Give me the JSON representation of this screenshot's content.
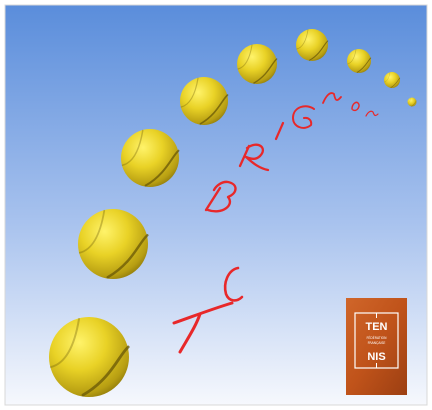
{
  "colors": {
    "sky_top": "#5b8edc",
    "sky_bottom": "#f4f7fd",
    "ball": "#e7cf24",
    "ball_shadow": "#9a8410",
    "seam": "#6e5c08",
    "club_text": "#e8282a",
    "badge": "#c4561b",
    "badge_dark": "#8e3a10"
  },
  "club_name_letters": [
    "T",
    "C",
    "B",
    "R",
    "I",
    "G",
    "N",
    "O",
    "N"
  ],
  "badge": {
    "word_top": "TEN",
    "word_bottom": "NIS",
    "small_line_1": "FÉDÉRATION",
    "small_line_2": "FRANÇAISE"
  }
}
